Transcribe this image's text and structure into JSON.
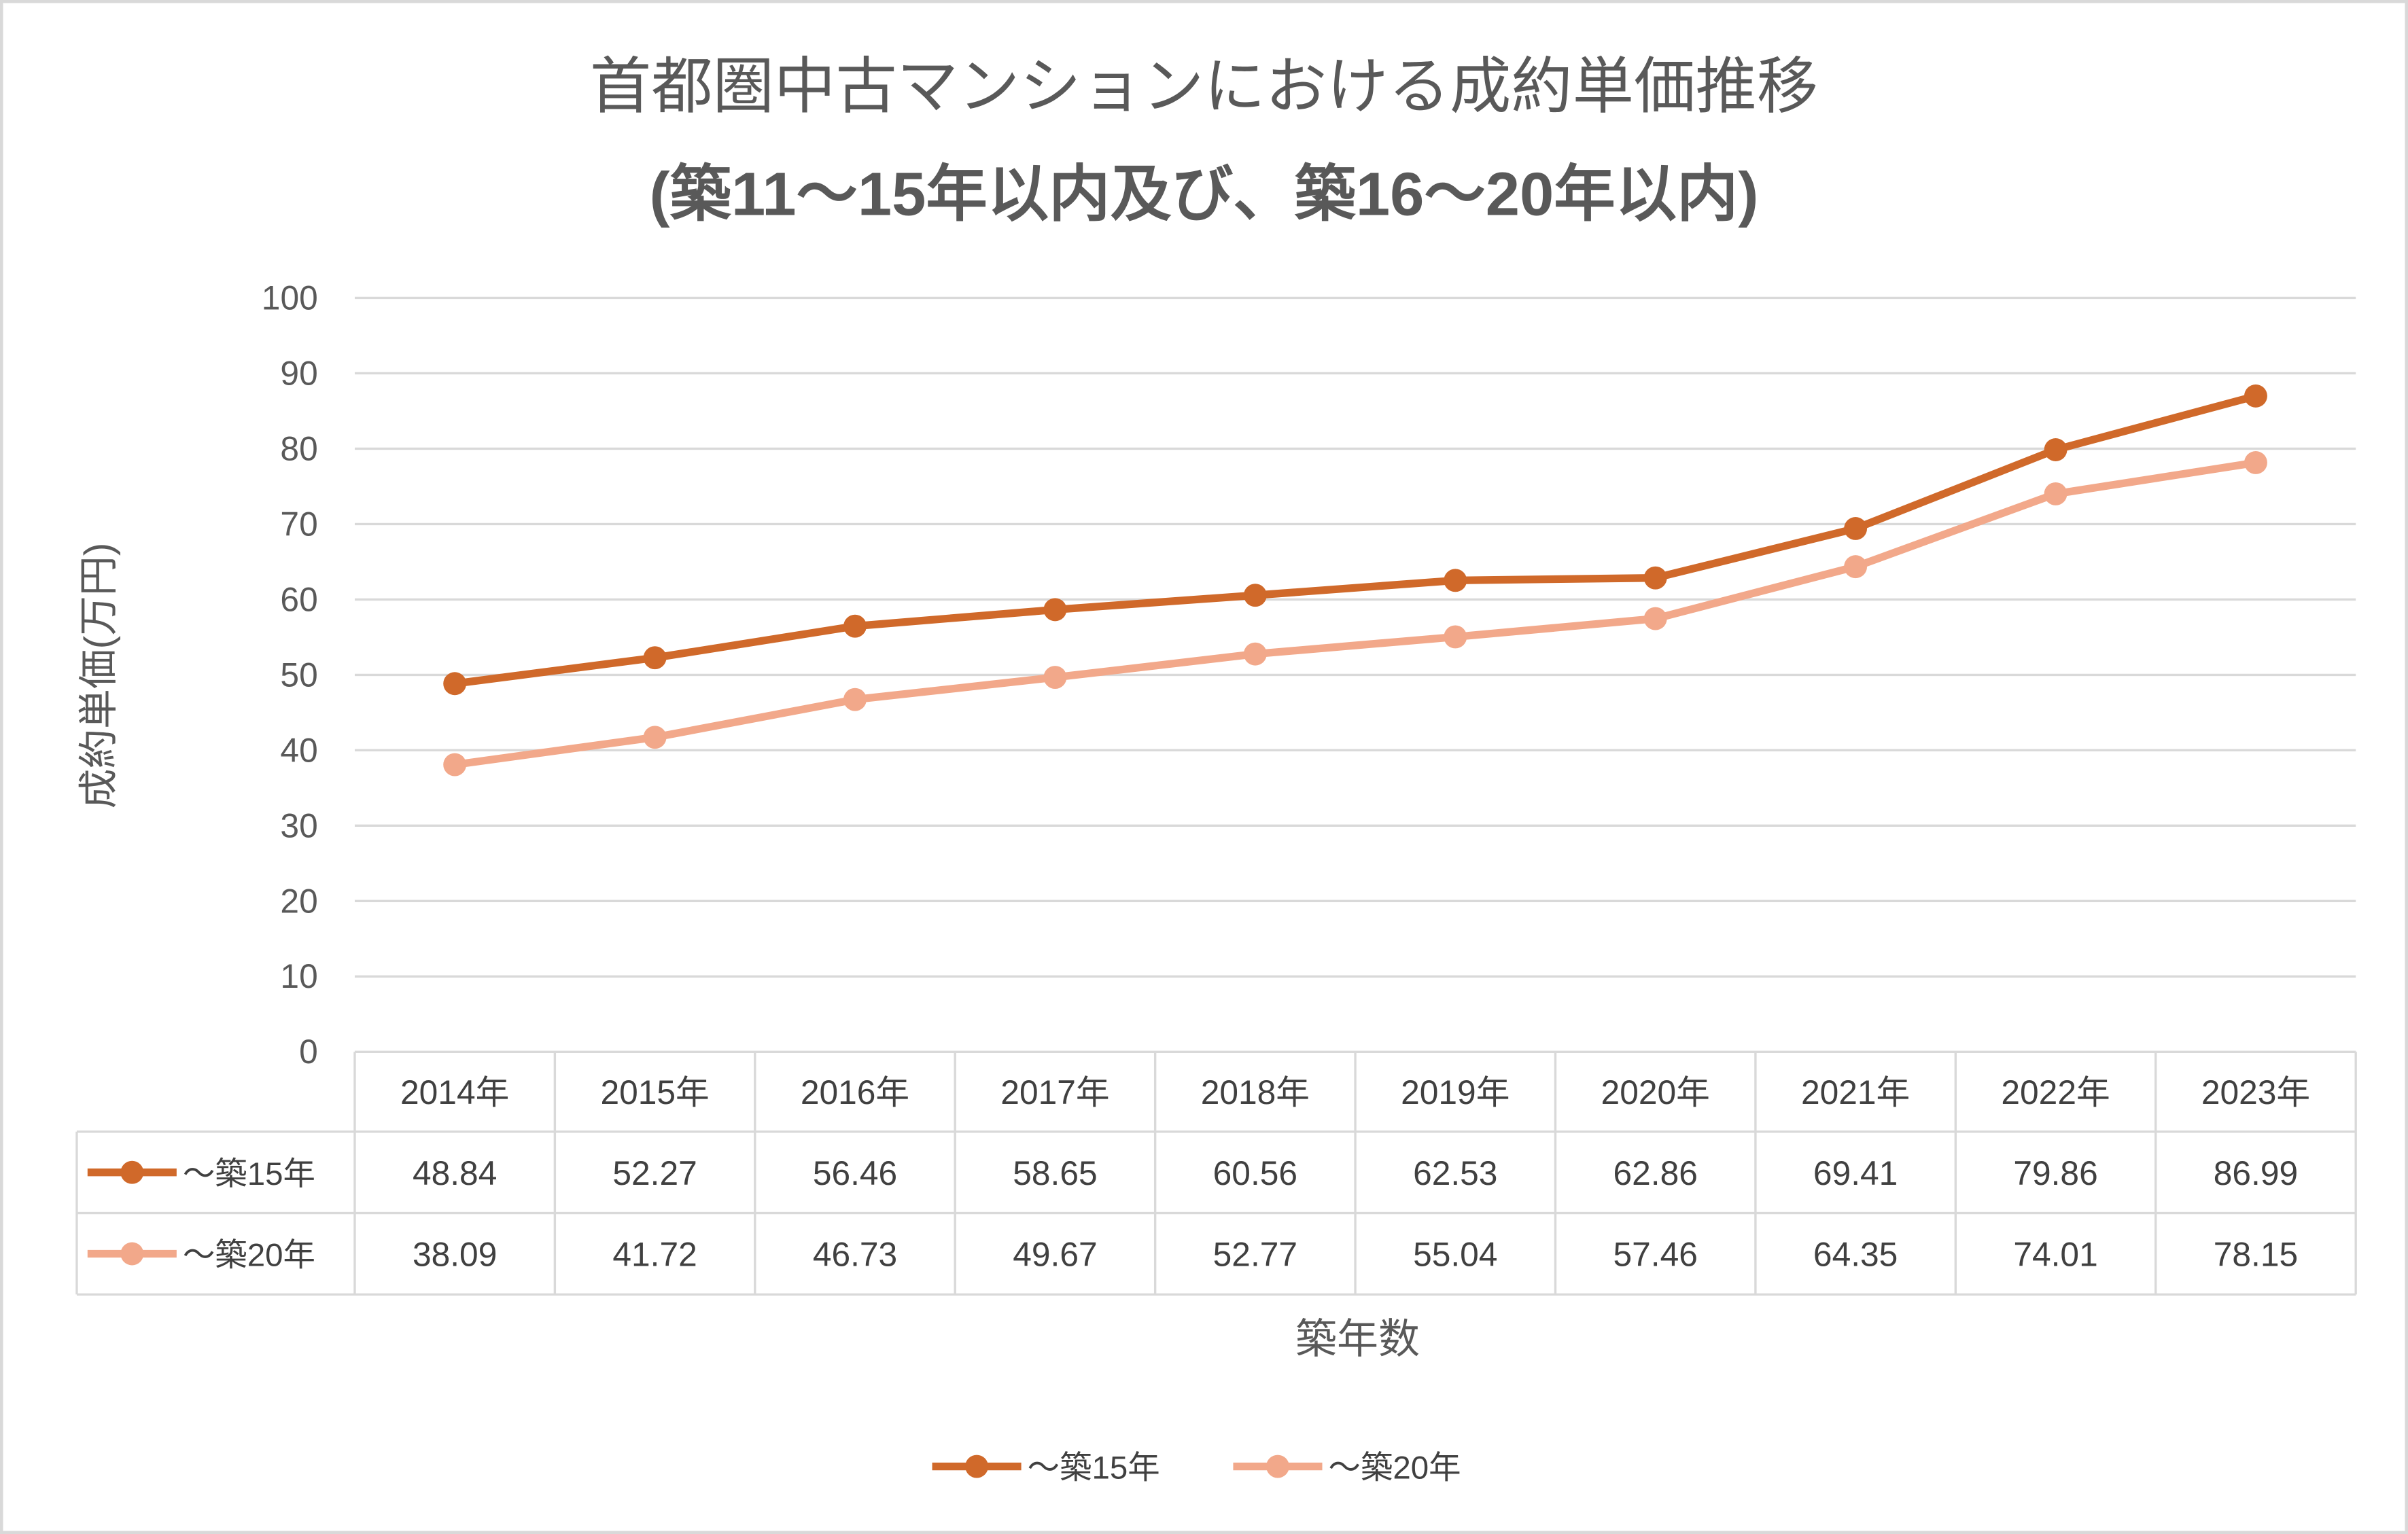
{
  "chart_data": {
    "type": "line",
    "title": "首都圏中古マンションにおける成約単価推移",
    "subtitle": "(築11～15年以内及び、築16～20年以内)",
    "xlabel": "築年数",
    "ylabel": "成約単価(万円)",
    "categories": [
      "2014年",
      "2015年",
      "2016年",
      "2017年",
      "2018年",
      "2019年",
      "2020年",
      "2021年",
      "2022年",
      "2023年"
    ],
    "series": [
      {
        "name": "～築15年",
        "color": "#D0692A",
        "values": [
          48.84,
          52.27,
          56.46,
          58.65,
          60.56,
          62.53,
          62.86,
          69.41,
          79.86,
          86.99
        ]
      },
      {
        "name": "～築20年",
        "color": "#F2A88A",
        "values": [
          38.09,
          41.72,
          46.73,
          49.67,
          52.77,
          55.04,
          57.46,
          64.35,
          74.01,
          78.15
        ]
      }
    ],
    "ylim": [
      0,
      100
    ],
    "yticks": [
      0,
      10,
      20,
      30,
      40,
      50,
      60,
      70,
      80,
      90,
      100
    ],
    "grid": true,
    "legend": "bottom",
    "data_table": true,
    "markers": "circle"
  }
}
